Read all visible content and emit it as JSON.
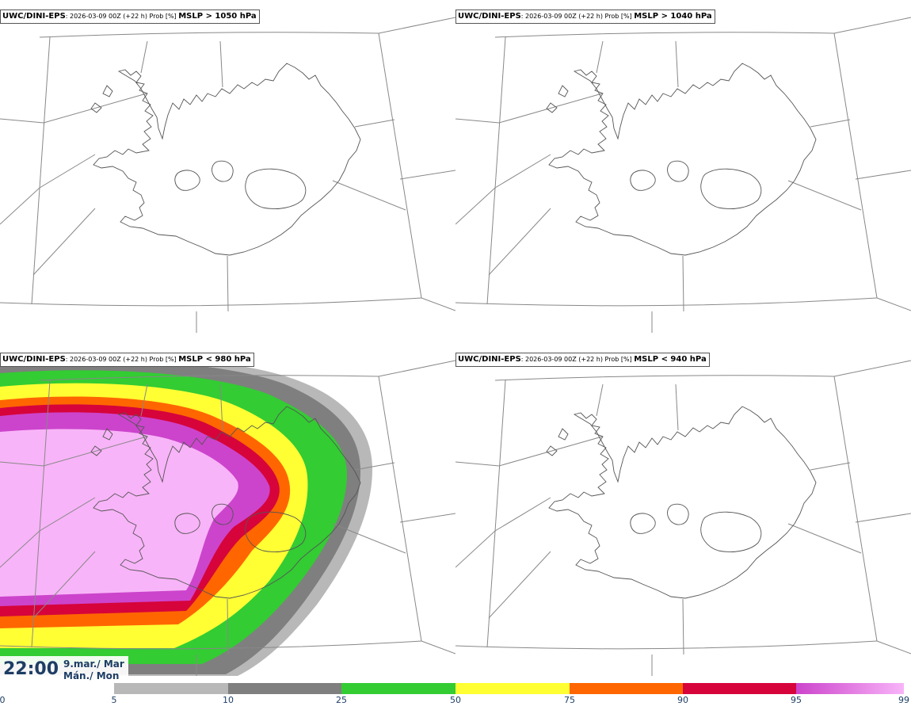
{
  "panels": [
    {
      "model": "UWC/DINI-EPS",
      "run_info": ": 2026-03-09 00Z (+22 h) Prob [%] ",
      "threshold": "MSLP > 1050 hPa",
      "has_field": false
    },
    {
      "model": "UWC/DINI-EPS",
      "run_info": ": 2026-03-09 00Z (+22 h) Prob [%] ",
      "threshold": "MSLP > 1040 hPa",
      "has_field": false
    },
    {
      "model": "UWC/DINI-EPS",
      "run_info": ": 2026-03-09 00Z (+22 h) Prob [%] ",
      "threshold": "MSLP < 980 hPa",
      "has_field": true
    },
    {
      "model": "UWC/DINI-EPS",
      "run_info": ": 2026-03-09 00Z (+22 h) Prob [%] ",
      "threshold": "MSLP < 940 hPa",
      "has_field": false
    }
  ],
  "time": {
    "value": "22:00",
    "date_line_1": "9.mar./ Mar",
    "date_line_2": "Mán./ Mon"
  },
  "colorbar": {
    "ticks": [
      "0",
      "5",
      "10",
      "25",
      "50",
      "75",
      "90",
      "95",
      "99"
    ],
    "segments": [
      {
        "from": "5",
        "to": "10",
        "color": "#b8b8b8"
      },
      {
        "from": "10",
        "to": "25",
        "color": "#7f7f7f"
      },
      {
        "from": "25",
        "to": "50",
        "color": "#33cc33"
      },
      {
        "from": "50",
        "to": "75",
        "color": "#ffff33"
      },
      {
        "from": "75",
        "to": "90",
        "color": "#ff6600"
      },
      {
        "from": "90",
        "to": "95",
        "color": "#d6043b"
      },
      {
        "from": "95",
        "to": "99",
        "color": "#cc44cc",
        "color2": "#f8b4f8"
      }
    ]
  }
}
